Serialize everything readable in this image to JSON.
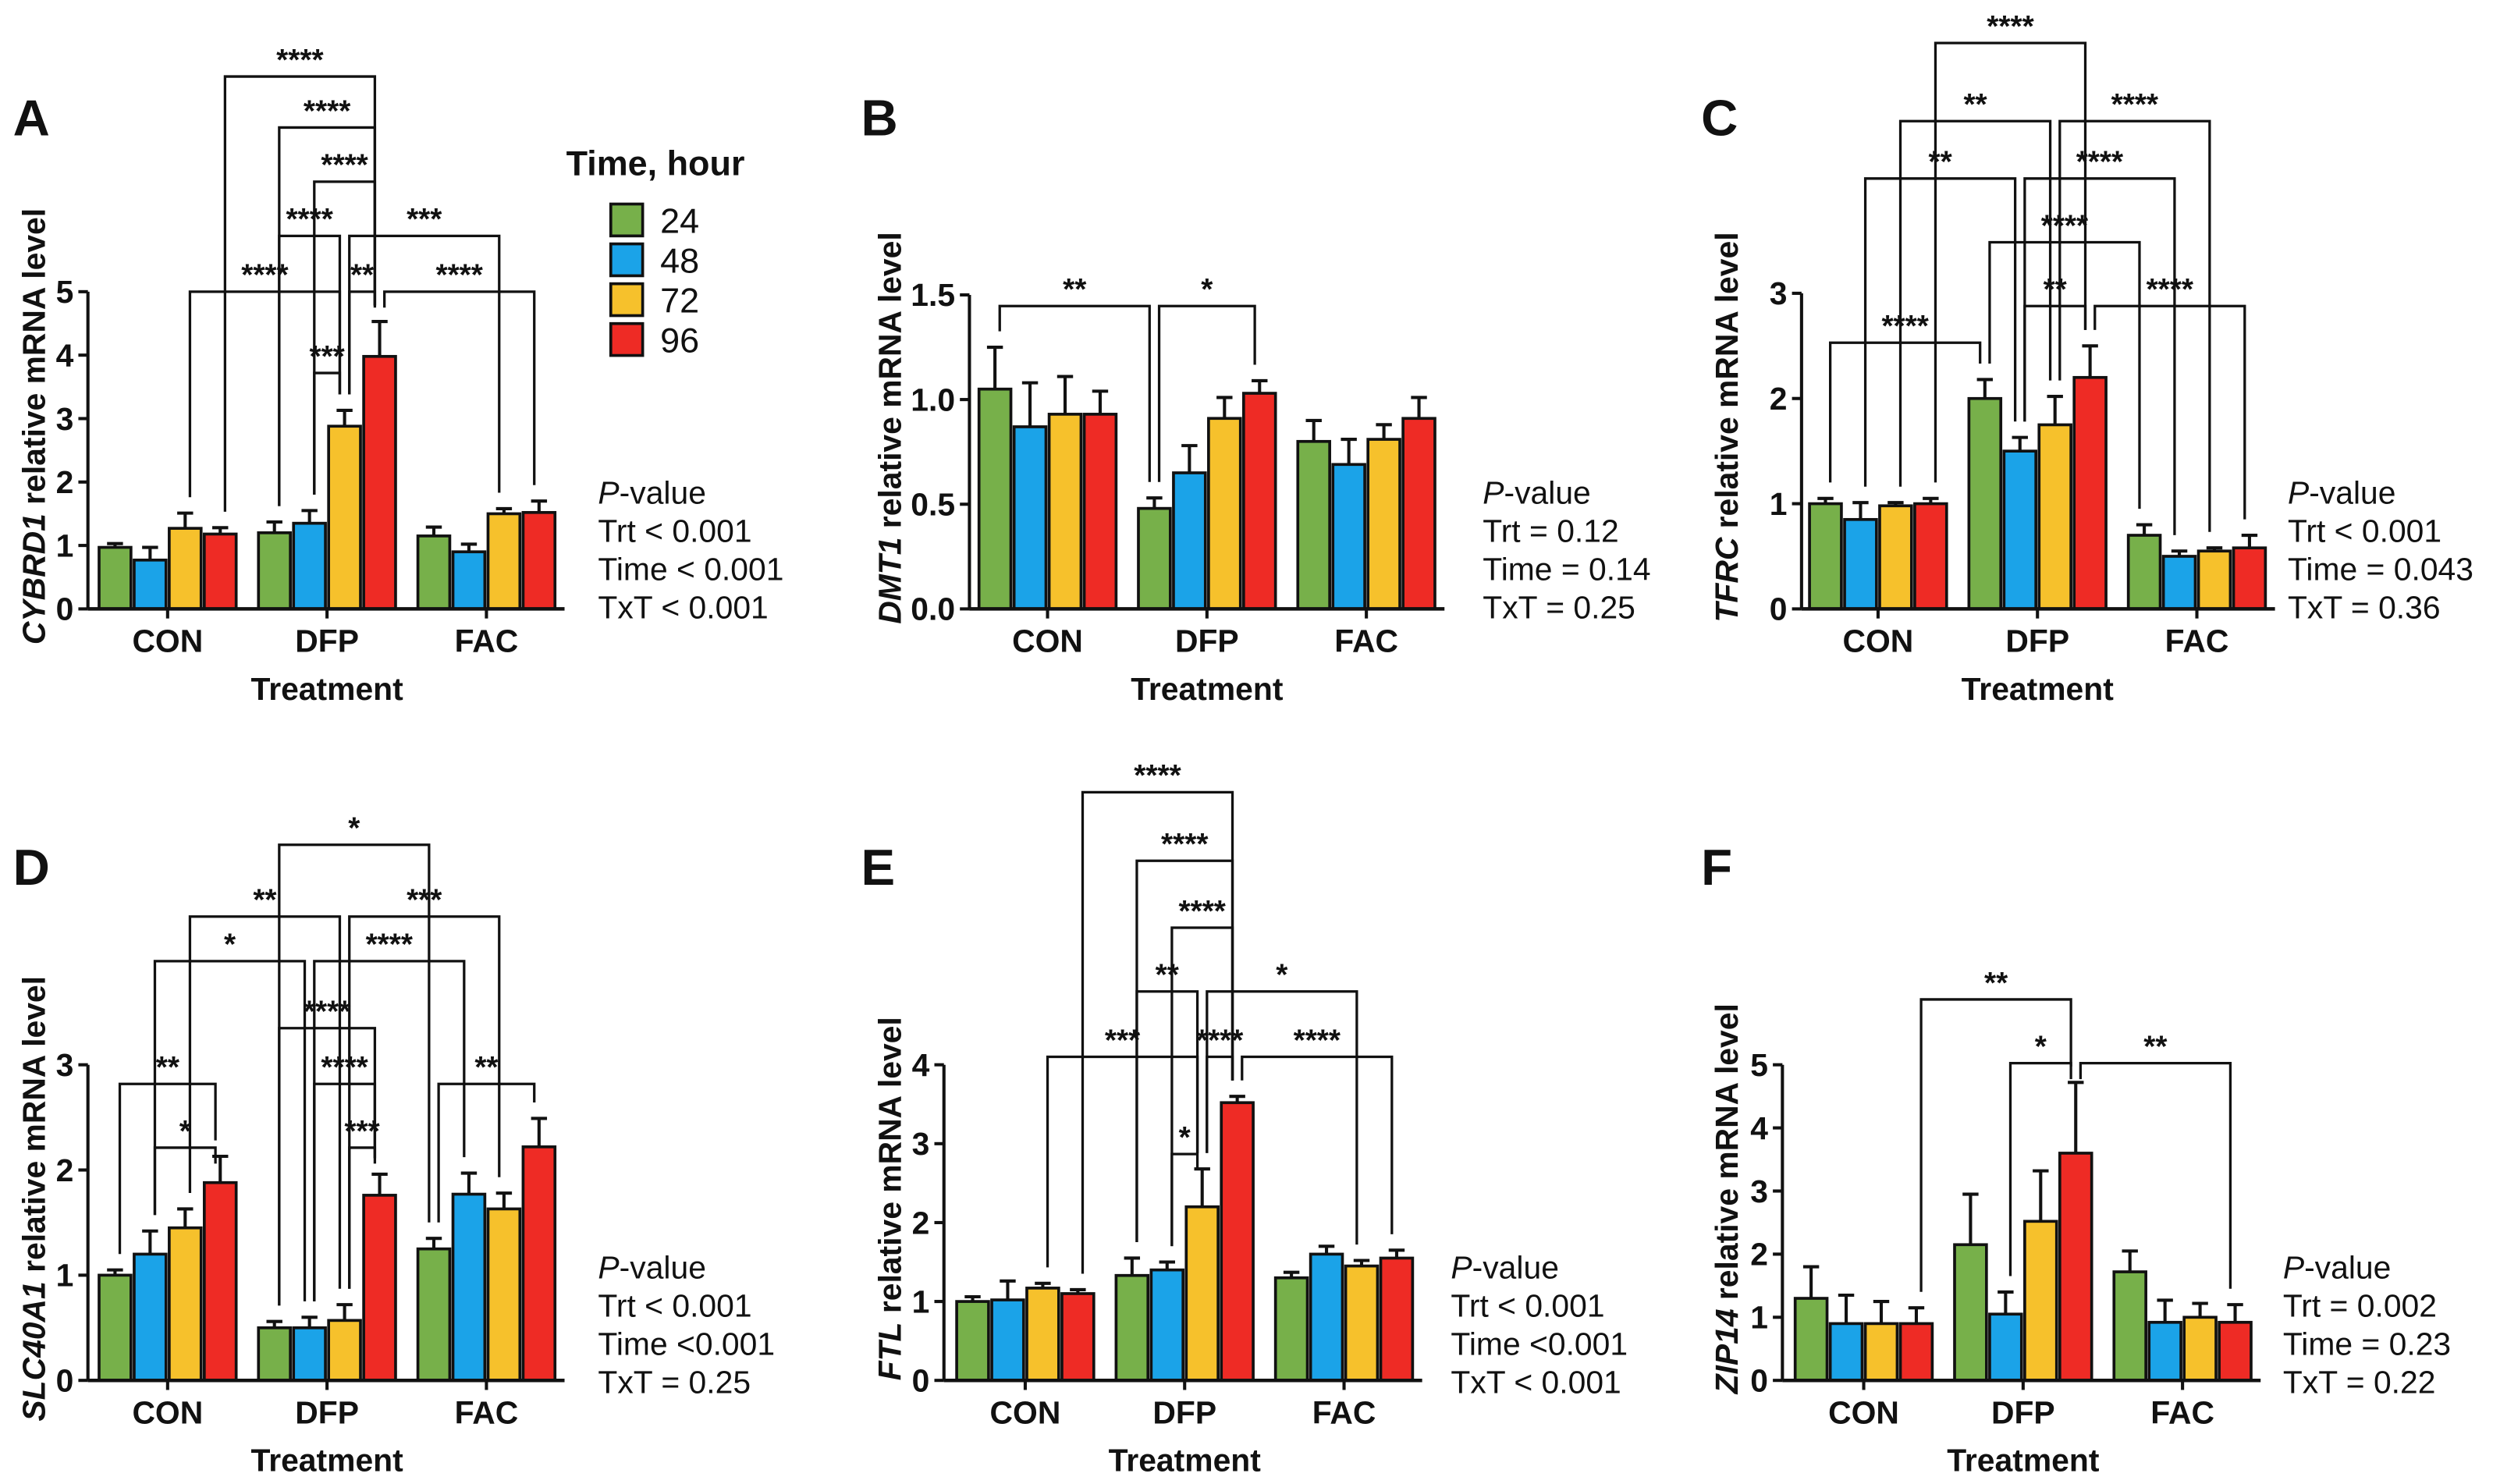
{
  "legend": {
    "title": "Time, hour",
    "items": [
      {
        "label": "24",
        "color": "#77b04a"
      },
      {
        "label": "48",
        "color": "#1ba3e8"
      },
      {
        "label": "72",
        "color": "#f6c12c"
      },
      {
        "label": "96",
        "color": "#ee2b25"
      }
    ]
  },
  "chart_data": [
    {
      "panel": "A",
      "type": "bar",
      "gene": "CYBRD1",
      "ylabel_suffix": " relative mRNA level",
      "xlabel": "Treatment",
      "categories": [
        "CON",
        "DFP",
        "FAC"
      ],
      "ylim": [
        0,
        5
      ],
      "yticks": [
        "0",
        "1",
        "2",
        "3",
        "4",
        "5"
      ],
      "series": [
        {
          "name": "24",
          "values": [
            0.97,
            1.2,
            1.15
          ],
          "errors": [
            0.06,
            0.17,
            0.14
          ]
        },
        {
          "name": "48",
          "values": [
            0.77,
            1.35,
            0.9
          ],
          "errors": [
            0.2,
            0.2,
            0.12
          ]
        },
        {
          "name": "72",
          "values": [
            1.27,
            2.88,
            1.5
          ],
          "errors": [
            0.24,
            0.25,
            0.08
          ]
        },
        {
          "name": "96",
          "values": [
            1.18,
            3.98,
            1.52
          ],
          "errors": [
            0.1,
            0.55,
            0.18
          ]
        }
      ],
      "pvalue": {
        "heading_p": "P",
        "heading_rest": "-value",
        "lines": [
          "Trt < 0.001",
          "Time < 0.001",
          "TxT < 0.001"
        ]
      },
      "comparisons": [
        {
          "from": [
            1,
            1
          ],
          "to": [
            1,
            2
          ],
          "label": "***",
          "tier": 0
        },
        {
          "from": [
            0,
            2
          ],
          "to": [
            1,
            2
          ],
          "label": "****",
          "tier": 1
        },
        {
          "from": [
            1,
            2
          ],
          "to": [
            1,
            3
          ],
          "label": "**",
          "tier": 1
        },
        {
          "from": [
            1,
            3
          ],
          "to": [
            2,
            3
          ],
          "label": "****",
          "tier": 1
        },
        {
          "from": [
            1,
            0
          ],
          "to": [
            1,
            2
          ],
          "label": "****",
          "tier": 2
        },
        {
          "from": [
            1,
            2
          ],
          "to": [
            2,
            2
          ],
          "label": "***",
          "tier": 2
        },
        {
          "from": [
            1,
            1
          ],
          "to": [
            1,
            3
          ],
          "label": "****",
          "tier": 3
        },
        {
          "from": [
            1,
            0
          ],
          "to": [
            1,
            3
          ],
          "label": "****",
          "tier": 4
        },
        {
          "from": [
            0,
            3
          ],
          "to": [
            1,
            3
          ],
          "label": "****",
          "tier": 5
        }
      ]
    },
    {
      "panel": "B",
      "type": "bar",
      "gene": "DMT1",
      "ylabel_suffix": " relative mRNA level",
      "xlabel": "Treatment",
      "categories": [
        "CON",
        "DFP",
        "FAC"
      ],
      "ylim": [
        0,
        1.5
      ],
      "yticks": [
        "0.0",
        "0.5",
        "1.0",
        "1.5"
      ],
      "series": [
        {
          "name": "24",
          "values": [
            1.05,
            0.48,
            0.8
          ],
          "errors": [
            0.2,
            0.05,
            0.1
          ]
        },
        {
          "name": "48",
          "values": [
            0.87,
            0.65,
            0.69
          ],
          "errors": [
            0.21,
            0.13,
            0.12
          ]
        },
        {
          "name": "72",
          "values": [
            0.93,
            0.91,
            0.81
          ],
          "errors": [
            0.18,
            0.1,
            0.07
          ]
        },
        {
          "name": "96",
          "values": [
            0.93,
            1.03,
            0.91
          ],
          "errors": [
            0.11,
            0.06,
            0.1
          ]
        }
      ],
      "pvalue": {
        "heading_p": "P",
        "heading_rest": "-value",
        "lines": [
          "Trt = 0.12",
          "Time = 0.14",
          "TxT = 0.25"
        ]
      },
      "comparisons": [
        {
          "from": [
            0,
            0
          ],
          "to": [
            1,
            0
          ],
          "label": "**",
          "tier": 0
        },
        {
          "from": [
            1,
            0
          ],
          "to": [
            1,
            3
          ],
          "label": "*",
          "tier": 0
        }
      ]
    },
    {
      "panel": "C",
      "type": "bar",
      "gene": "TFRC",
      "ylabel_suffix": " relative mRNA level",
      "xlabel": "Treatment",
      "categories": [
        "CON",
        "DFP",
        "FAC"
      ],
      "ylim": [
        0,
        3
      ],
      "yticks": [
        "0",
        "1",
        "2",
        "3"
      ],
      "series": [
        {
          "name": "24",
          "values": [
            1.0,
            2.0,
            0.7
          ],
          "errors": [
            0.05,
            0.18,
            0.1
          ]
        },
        {
          "name": "48",
          "values": [
            0.85,
            1.5,
            0.5
          ],
          "errors": [
            0.16,
            0.13,
            0.05
          ]
        },
        {
          "name": "72",
          "values": [
            0.98,
            1.75,
            0.55
          ],
          "errors": [
            0.03,
            0.27,
            0.03
          ]
        },
        {
          "name": "96",
          "values": [
            1.0,
            2.2,
            0.58
          ],
          "errors": [
            0.05,
            0.3,
            0.12
          ]
        }
      ],
      "pvalue": {
        "heading_p": "P",
        "heading_rest": "-value",
        "lines": [
          "Trt < 0.001",
          "Time = 0.043",
          "TxT = 0.36"
        ]
      },
      "comparisons": [
        {
          "from": [
            0,
            0
          ],
          "to": [
            1,
            0
          ],
          "label": "****",
          "tier": 0
        },
        {
          "from": [
            1,
            1
          ],
          "to": [
            1,
            3
          ],
          "label": "**",
          "tier": 1
        },
        {
          "from": [
            1,
            3
          ],
          "to": [
            2,
            3
          ],
          "label": "****",
          "tier": 1
        },
        {
          "from": [
            1,
            0
          ],
          "to": [
            2,
            0
          ],
          "label": "****",
          "tier": 2
        },
        {
          "from": [
            0,
            1
          ],
          "to": [
            1,
            1
          ],
          "label": "**",
          "tier": 3
        },
        {
          "from": [
            1,
            1
          ],
          "to": [
            2,
            1
          ],
          "label": "****",
          "tier": 3
        },
        {
          "from": [
            0,
            2
          ],
          "to": [
            1,
            2
          ],
          "label": "**",
          "tier": 4
        },
        {
          "from": [
            1,
            2
          ],
          "to": [
            2,
            2
          ],
          "label": "****",
          "tier": 4
        },
        {
          "from": [
            0,
            3
          ],
          "to": [
            1,
            3
          ],
          "label": "****",
          "tier": 5
        }
      ]
    },
    {
      "panel": "D",
      "type": "bar",
      "gene": "SLC40A1",
      "ylabel_suffix": " relative mRNA level",
      "xlabel": "Treatment",
      "categories": [
        "CON",
        "DFP",
        "FAC"
      ],
      "ylim": [
        0,
        3
      ],
      "yticks": [
        "0",
        "1",
        "2",
        "3"
      ],
      "series": [
        {
          "name": "24",
          "values": [
            1.0,
            0.5,
            1.25
          ],
          "errors": [
            0.05,
            0.06,
            0.1
          ]
        },
        {
          "name": "48",
          "values": [
            1.2,
            0.5,
            1.77
          ],
          "errors": [
            0.22,
            0.1,
            0.2
          ]
        },
        {
          "name": "72",
          "values": [
            1.45,
            0.57,
            1.63
          ],
          "errors": [
            0.18,
            0.15,
            0.15
          ]
        },
        {
          "name": "96",
          "values": [
            1.88,
            1.76,
            2.22
          ],
          "errors": [
            0.25,
            0.2,
            0.27
          ]
        }
      ],
      "pvalue": {
        "heading_p": "P",
        "heading_rest": "-value",
        "lines": [
          "Trt < 0.001",
          "Time <0.001",
          "TxT = 0.25"
        ]
      },
      "comparisons": [
        {
          "from": [
            0,
            1
          ],
          "to": [
            0,
            3
          ],
          "label": "*",
          "tier": 0
        },
        {
          "from": [
            1,
            2
          ],
          "to": [
            1,
            3
          ],
          "label": "***",
          "tier": 0
        },
        {
          "from": [
            0,
            0
          ],
          "to": [
            0,
            3
          ],
          "label": "**",
          "tier": 1
        },
        {
          "from": [
            1,
            1
          ],
          "to": [
            1,
            3
          ],
          "label": "****",
          "tier": 1
        },
        {
          "from": [
            2,
            0
          ],
          "to": [
            2,
            3
          ],
          "label": "**",
          "tier": 1
        },
        {
          "from": [
            1,
            0
          ],
          "to": [
            1,
            3
          ],
          "label": "****",
          "tier": 2
        },
        {
          "from": [
            0,
            1
          ],
          "to": [
            1,
            1
          ],
          "label": "*",
          "tier": 3
        },
        {
          "from": [
            1,
            1
          ],
          "to": [
            2,
            1
          ],
          "label": "****",
          "tier": 3
        },
        {
          "from": [
            0,
            2
          ],
          "to": [
            1,
            2
          ],
          "label": "**",
          "tier": 4
        },
        {
          "from": [
            1,
            2
          ],
          "to": [
            2,
            2
          ],
          "label": "***",
          "tier": 4
        },
        {
          "from": [
            1,
            0
          ],
          "to": [
            2,
            0
          ],
          "label": "*",
          "tier": 5
        }
      ]
    },
    {
      "panel": "E",
      "type": "bar",
      "gene": "FTL",
      "ylabel_suffix": " relative mRNA level",
      "xlabel": "Treatment",
      "categories": [
        "CON",
        "DFP",
        "FAC"
      ],
      "ylim": [
        0,
        4
      ],
      "yticks": [
        "0",
        "1",
        "2",
        "3",
        "4"
      ],
      "series": [
        {
          "name": "24",
          "values": [
            1.0,
            1.33,
            1.3
          ],
          "errors": [
            0.06,
            0.22,
            0.07
          ]
        },
        {
          "name": "48",
          "values": [
            1.02,
            1.4,
            1.6
          ],
          "errors": [
            0.24,
            0.1,
            0.1
          ]
        },
        {
          "name": "72",
          "values": [
            1.17,
            2.2,
            1.45
          ],
          "errors": [
            0.06,
            0.48,
            0.07
          ]
        },
        {
          "name": "96",
          "values": [
            1.1,
            3.52,
            1.55
          ],
          "errors": [
            0.05,
            0.08,
            0.1
          ]
        }
      ],
      "pvalue": {
        "heading_p": "P",
        "heading_rest": "-value",
        "lines": [
          "Trt < 0.001",
          "Time <0.001",
          "TxT < 0.001"
        ]
      },
      "comparisons": [
        {
          "from": [
            1,
            1
          ],
          "to": [
            1,
            2
          ],
          "label": "*",
          "tier": 0
        },
        {
          "from": [
            0,
            2
          ],
          "to": [
            1,
            2
          ],
          "label": "***",
          "tier": 1
        },
        {
          "from": [
            1,
            2
          ],
          "to": [
            1,
            3
          ],
          "label": "****",
          "tier": 1
        },
        {
          "from": [
            1,
            3
          ],
          "to": [
            2,
            3
          ],
          "label": "****",
          "tier": 1
        },
        {
          "from": [
            1,
            0
          ],
          "to": [
            1,
            2
          ],
          "label": "**",
          "tier": 2
        },
        {
          "from": [
            1,
            2
          ],
          "to": [
            2,
            2
          ],
          "label": "*",
          "tier": 2
        },
        {
          "from": [
            1,
            1
          ],
          "to": [
            1,
            3
          ],
          "label": "****",
          "tier": 3
        },
        {
          "from": [
            1,
            0
          ],
          "to": [
            1,
            3
          ],
          "label": "****",
          "tier": 4
        },
        {
          "from": [
            0,
            3
          ],
          "to": [
            1,
            3
          ],
          "label": "****",
          "tier": 5
        }
      ]
    },
    {
      "panel": "F",
      "type": "bar",
      "gene": "ZIP14",
      "ylabel_suffix": " relative mRNA level",
      "xlabel": "Treatment",
      "categories": [
        "CON",
        "DFP",
        "FAC"
      ],
      "ylim": [
        0,
        5
      ],
      "yticks": [
        "0",
        "1",
        "2",
        "3",
        "4",
        "5"
      ],
      "series": [
        {
          "name": "24",
          "values": [
            1.3,
            2.15,
            1.72
          ],
          "errors": [
            0.5,
            0.8,
            0.33
          ]
        },
        {
          "name": "48",
          "values": [
            0.9,
            1.05,
            0.92
          ],
          "errors": [
            0.45,
            0.35,
            0.35
          ]
        },
        {
          "name": "72",
          "values": [
            0.9,
            2.52,
            1.0
          ],
          "errors": [
            0.35,
            0.8,
            0.22
          ]
        },
        {
          "name": "96",
          "values": [
            0.9,
            3.6,
            0.92
          ],
          "errors": [
            0.25,
            1.12,
            0.28
          ]
        }
      ],
      "pvalue": {
        "heading_p": "P",
        "heading_rest": "-value",
        "lines": [
          "Trt = 0.002",
          "Time = 0.23",
          "TxT = 0.22"
        ]
      },
      "comparisons": [
        {
          "from": [
            1,
            1
          ],
          "to": [
            1,
            3
          ],
          "label": "*",
          "tier": 0
        },
        {
          "from": [
            1,
            3
          ],
          "to": [
            2,
            3
          ],
          "label": "**",
          "tier": 0
        },
        {
          "from": [
            0,
            3
          ],
          "to": [
            1,
            3
          ],
          "label": "**",
          "tier": 1
        }
      ]
    }
  ]
}
